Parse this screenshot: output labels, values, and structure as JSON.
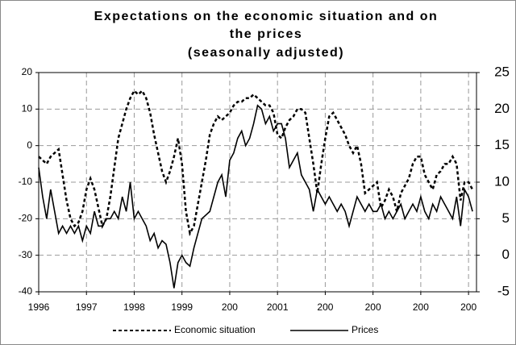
{
  "chart_data": {
    "type": "line",
    "title": [
      "Expectations on the economic situation and on",
      "the prices"
    ],
    "subtitle": "(seasonally adjusted)",
    "x": [
      0,
      1,
      2,
      3,
      4,
      5,
      6,
      7,
      8,
      9,
      10,
      11,
      12,
      13,
      14,
      15,
      16,
      17,
      18,
      19,
      20,
      21,
      22,
      23,
      24,
      25,
      26,
      27,
      28,
      29,
      30,
      31,
      32,
      33,
      34,
      35,
      36,
      37,
      38,
      39,
      40,
      41,
      42,
      43,
      44,
      45,
      46,
      47,
      48,
      49,
      50,
      51,
      52,
      53,
      54,
      55,
      56,
      57,
      58,
      59,
      60,
      61,
      62,
      63,
      64,
      65,
      66,
      67,
      68,
      69,
      70,
      71,
      72,
      73,
      74,
      75,
      76,
      77,
      78,
      79,
      80,
      81,
      82,
      83,
      84,
      85,
      86,
      87,
      88,
      89,
      90,
      91,
      92,
      93,
      94,
      95,
      96,
      97,
      98,
      99,
      100,
      101,
      102,
      103,
      104,
      105,
      106,
      107,
      108,
      109
    ],
    "series": [
      {
        "name": "Economic situation",
        "color": "#000000",
        "dash": true,
        "axis": "y",
        "values": [
          -3,
          -4,
          -5,
          -3,
          -2,
          -1,
          -8,
          -15,
          -20,
          -22,
          -21,
          -18,
          -12,
          -9,
          -12,
          -17,
          -22,
          -20,
          -14,
          -6,
          2,
          6,
          10,
          13,
          15,
          14,
          15,
          13,
          9,
          3,
          -2,
          -7,
          -10,
          -7,
          -3,
          2,
          -5,
          -18,
          -24,
          -22,
          -16,
          -10,
          -4,
          3,
          6,
          8,
          7,
          8,
          9,
          11,
          12,
          12,
          13,
          13,
          14,
          13,
          12,
          11,
          11,
          9,
          3,
          2,
          5,
          7,
          8,
          10,
          10,
          9,
          2,
          -5,
          -13,
          -5,
          2,
          8,
          9,
          7,
          5,
          3,
          0,
          -2,
          0,
          -5,
          -13,
          -12,
          -11,
          -10,
          -17,
          -15,
          -12,
          -14,
          -18,
          -13,
          -11,
          -9,
          -5,
          -3,
          -3,
          -8,
          -10,
          -12,
          -8,
          -7,
          -5,
          -5,
          -3,
          -5,
          -15,
          -10,
          -10,
          -12
        ]
      },
      {
        "name": "Prices",
        "color": "#000000",
        "dash": false,
        "axis": "y2",
        "values": [
          12,
          8,
          5,
          9,
          6,
          3,
          4,
          3,
          4,
          3,
          4,
          2,
          4,
          3,
          6,
          4,
          4,
          5,
          5,
          6,
          5,
          8,
          6,
          10,
          5,
          6,
          5,
          4,
          2,
          3,
          1,
          2,
          1.5,
          -1,
          -4.5,
          -1,
          0,
          -1,
          -1.5,
          1,
          3,
          5,
          5.5,
          6,
          8,
          10,
          11,
          8,
          13,
          14,
          16,
          17,
          15,
          16,
          18,
          20.5,
          20,
          18,
          19,
          17,
          18,
          18,
          16,
          12,
          13,
          14,
          11,
          10,
          9,
          6,
          9,
          8,
          7,
          8,
          7,
          6,
          7,
          6,
          4,
          6,
          8,
          7,
          6,
          7,
          6,
          6,
          7,
          5,
          6,
          5,
          6,
          7,
          5,
          6,
          7,
          6,
          8,
          6,
          5,
          7,
          6,
          8,
          7,
          6,
          5,
          8,
          4,
          9,
          8,
          6
        ]
      }
    ],
    "xlim": [
      0,
      110
    ],
    "xticks": [
      {
        "value": 0,
        "label": "1996"
      },
      {
        "value": 12,
        "label": "1997"
      },
      {
        "value": 24,
        "label": "1998"
      },
      {
        "value": 36,
        "label": "1999"
      },
      {
        "value": 48,
        "label": "200"
      },
      {
        "value": 60,
        "label": "2001"
      },
      {
        "value": 72,
        "label": "200"
      },
      {
        "value": 84,
        "label": "200"
      },
      {
        "value": 96,
        "label": "200"
      },
      {
        "value": 108,
        "label": "200"
      }
    ],
    "ylim": [
      -40,
      20
    ],
    "yticks": [
      -40,
      -30,
      -20,
      -10,
      0,
      10,
      20
    ],
    "y2lim": [
      -5,
      25
    ],
    "y2ticks": [
      -5,
      0,
      5,
      10,
      15,
      20,
      25
    ],
    "grid": true,
    "legend": "bottom"
  }
}
